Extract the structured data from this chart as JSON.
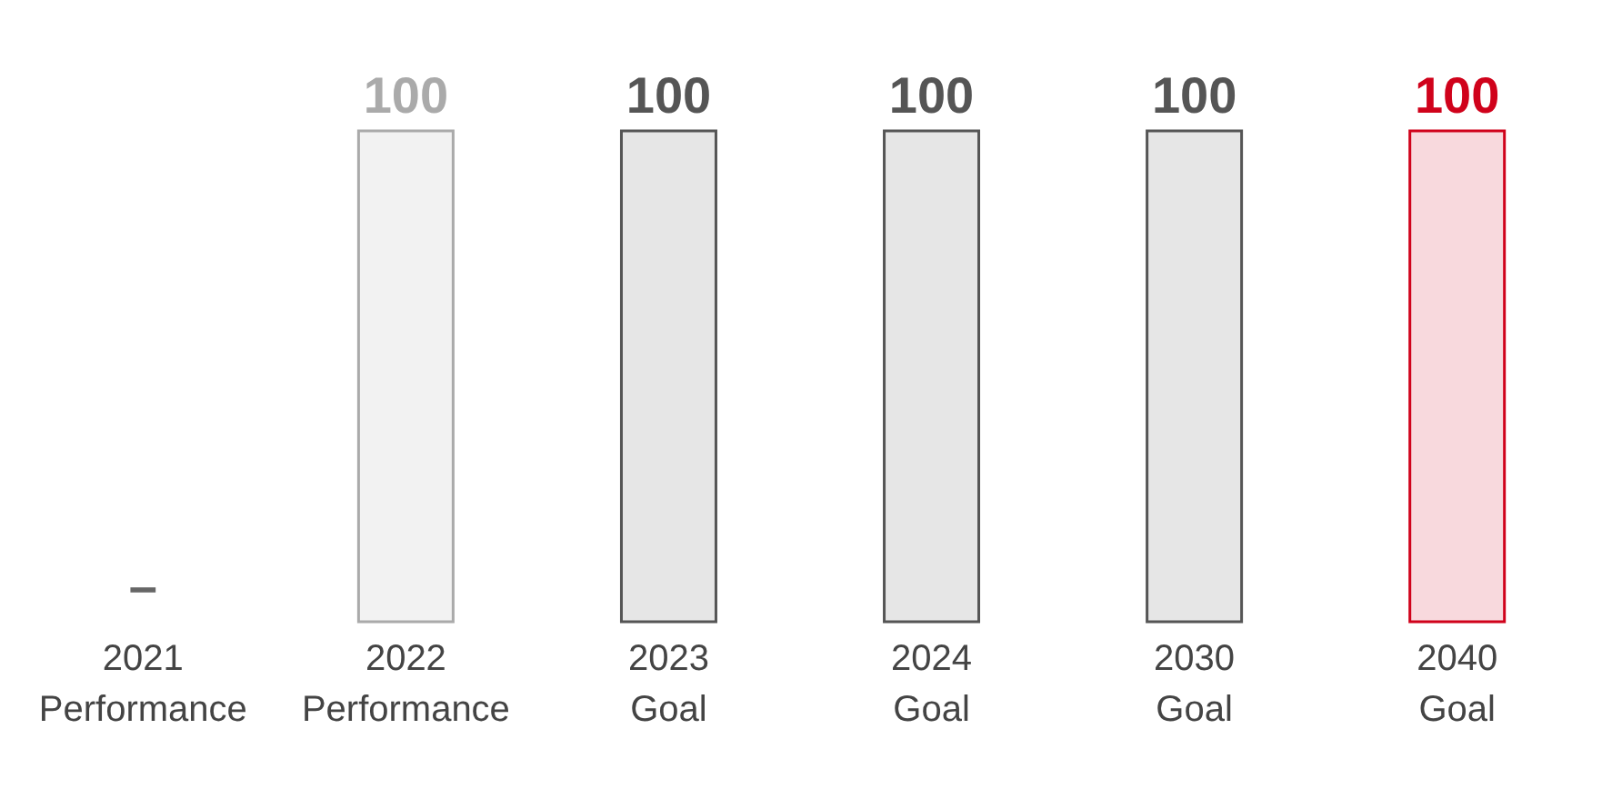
{
  "chart_data": {
    "type": "bar",
    "categories": [
      "2021 Performance",
      "2022 Performance",
      "2023 Goal",
      "2024 Goal",
      "2030 Goal",
      "2040 Goal"
    ],
    "values": [
      null,
      100,
      100,
      100,
      100,
      100
    ],
    "value_labels": [
      "–",
      "100",
      "100",
      "100",
      "100",
      "100"
    ],
    "colors": [
      "#666666",
      "#aaaaaa",
      "#555555",
      "#555555",
      "#555555",
      "#d0021b"
    ]
  }
}
